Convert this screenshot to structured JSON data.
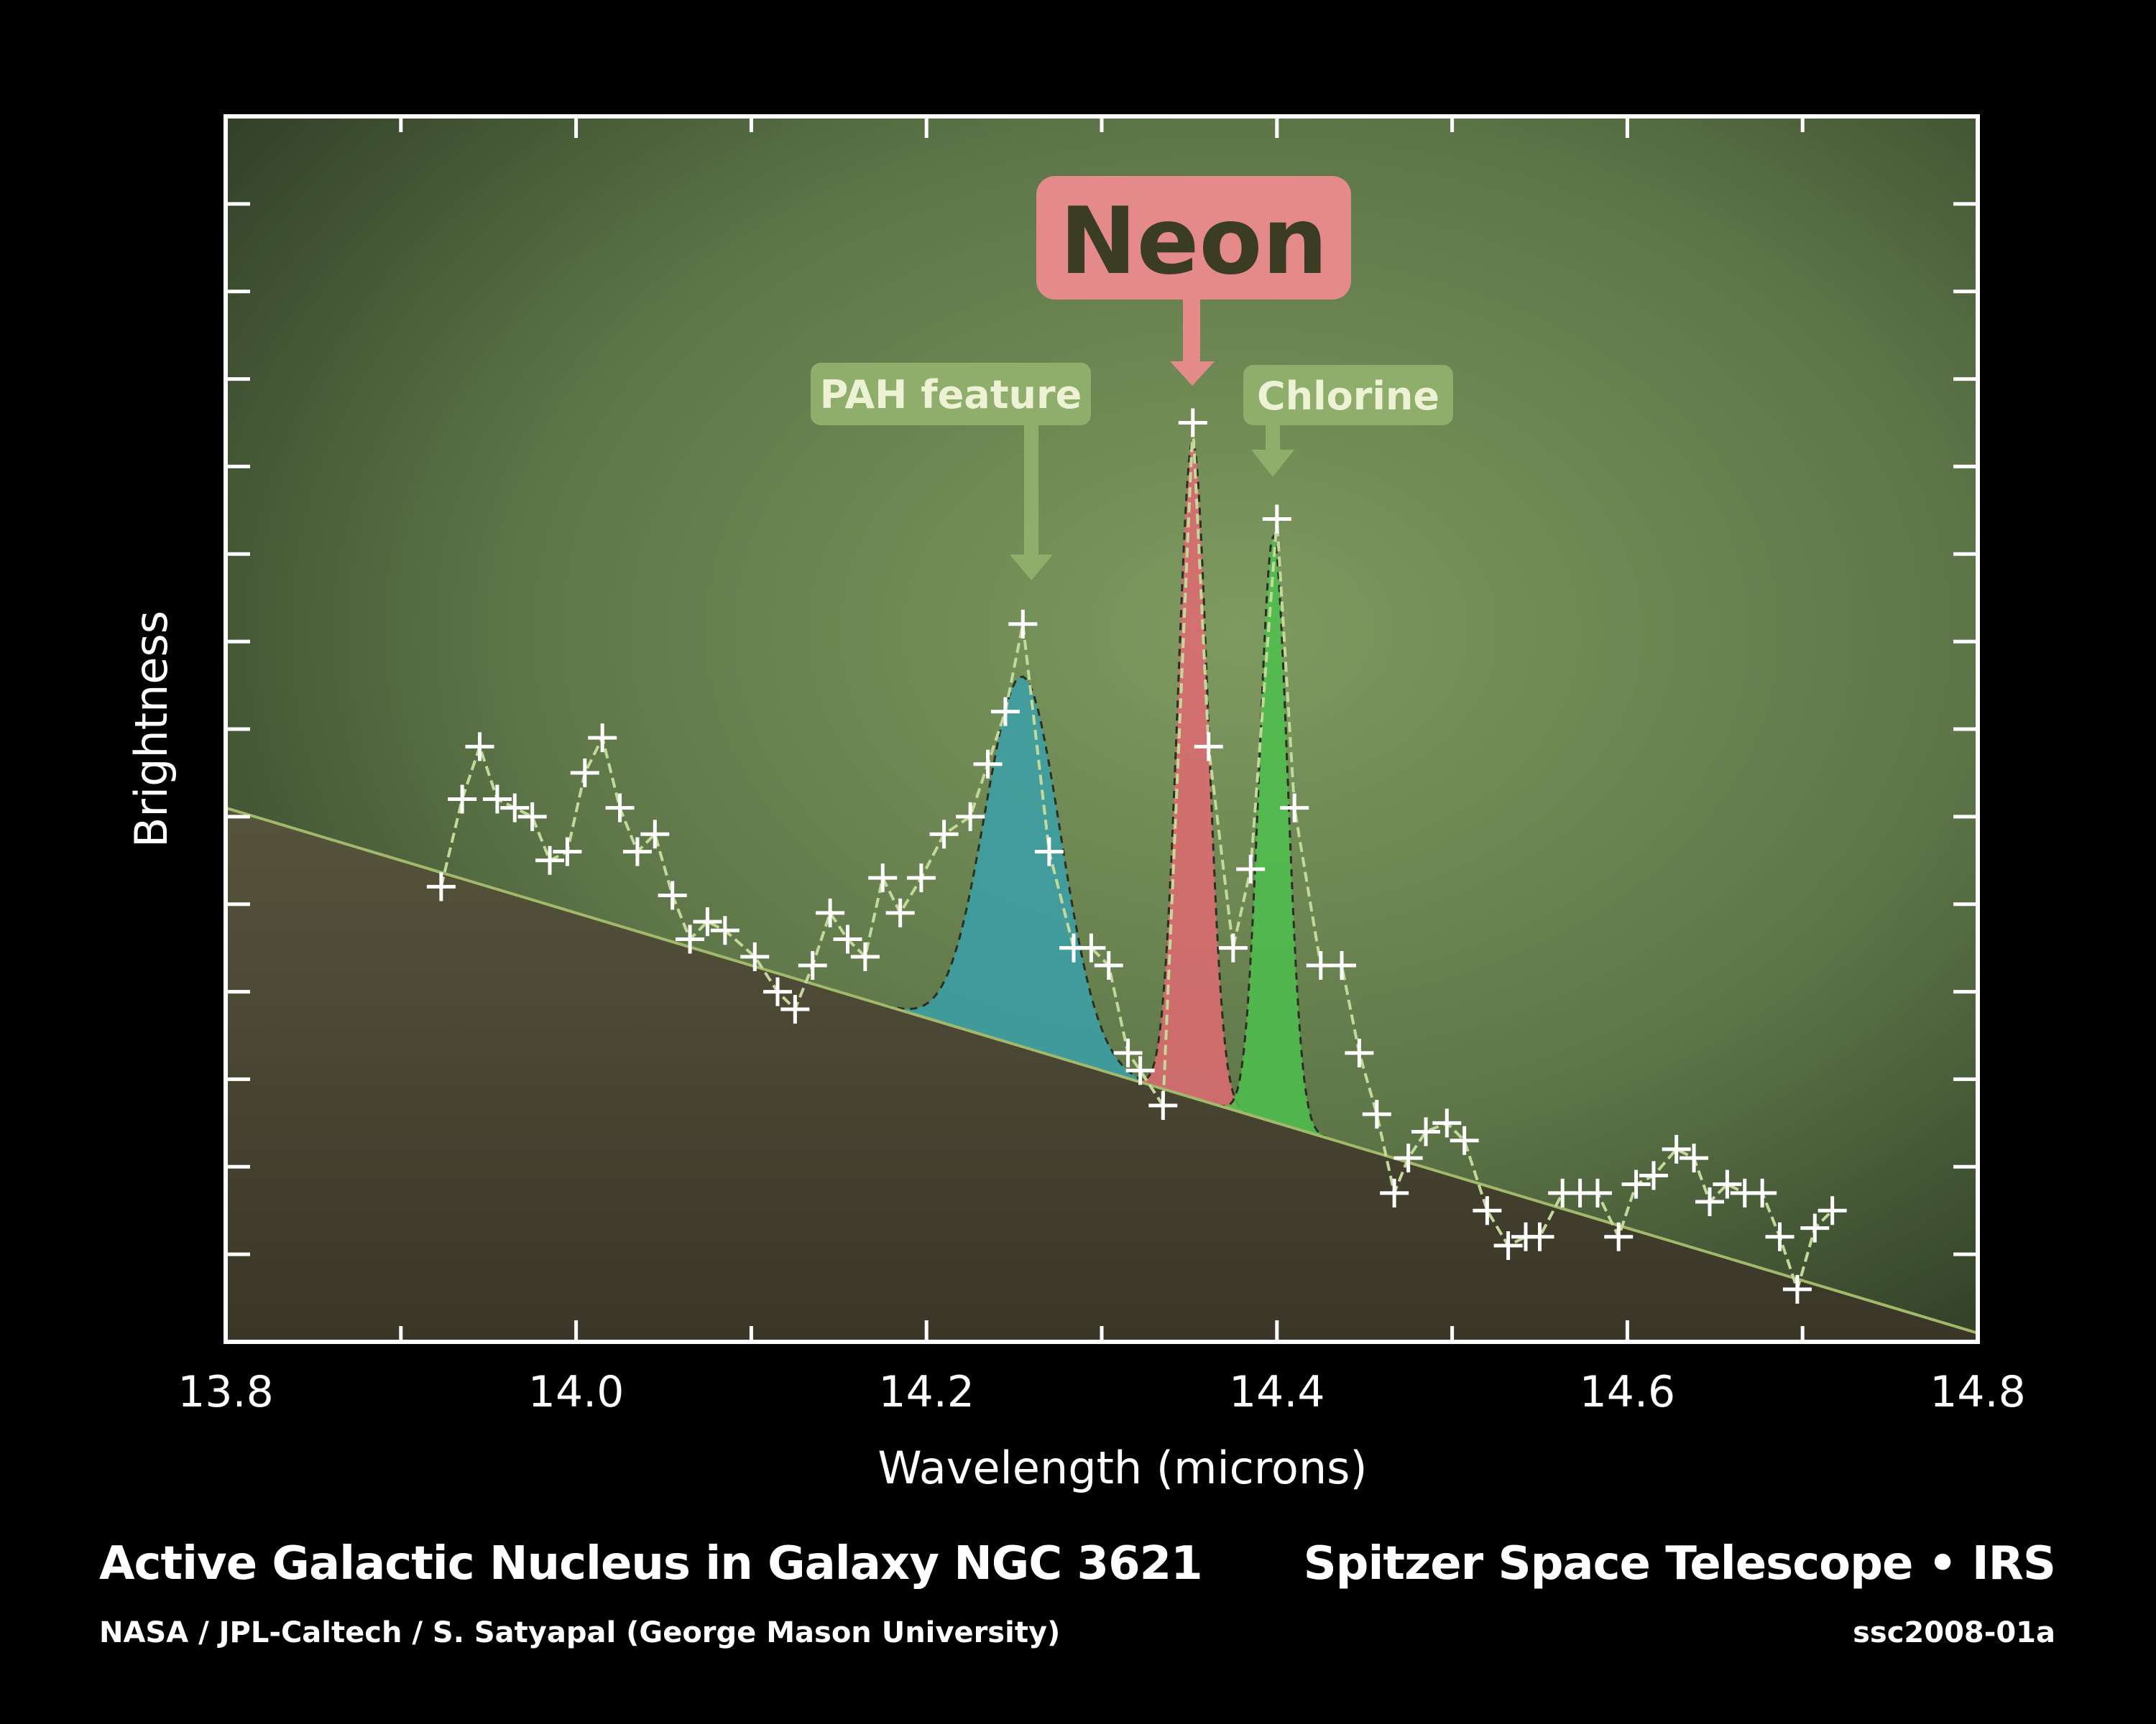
{
  "chart_data": {
    "type": "line",
    "xlabel": "Wavelength (microns)",
    "ylabel": "Brightness",
    "xlim": [
      13.8,
      14.8
    ],
    "ylim": [
      0,
      14
    ],
    "x_ticks": [
      "13.8",
      "14.0",
      "14.2",
      "14.4",
      "14.6",
      "14.8"
    ],
    "y_ticks_labeled": false,
    "grid": false,
    "series": [
      {
        "x": [
          13.923,
          13.935,
          13.945,
          13.955,
          13.965,
          13.975,
          13.985,
          13.995,
          14.005,
          14.015,
          14.025,
          14.035,
          14.045,
          14.055,
          14.065,
          14.075,
          14.085,
          14.102,
          14.115,
          14.125,
          14.135,
          14.145,
          14.155,
          14.165,
          14.175,
          14.185,
          14.197,
          14.21,
          14.225,
          14.235,
          14.245,
          14.255,
          14.27,
          14.284,
          14.294,
          14.304,
          14.315,
          14.322,
          14.335,
          14.352,
          14.361,
          14.375,
          14.385,
          14.4,
          14.41,
          14.425,
          14.437,
          14.447,
          14.457,
          14.467,
          14.475,
          14.485,
          14.497,
          14.507,
          14.52,
          14.532,
          14.542,
          14.55,
          14.563,
          14.573,
          14.583,
          14.595,
          14.605,
          14.615,
          14.628,
          14.638,
          14.647,
          14.657,
          14.667,
          14.677,
          14.687,
          14.697,
          14.707,
          14.717
        ],
        "y": [
          5.2,
          6.2,
          6.8,
          6.2,
          6.1,
          6.0,
          5.5,
          5.6,
          6.5,
          6.9,
          6.1,
          5.6,
          5.8,
          5.1,
          4.6,
          4.8,
          4.7,
          4.4,
          4.0,
          3.8,
          4.3,
          4.9,
          4.6,
          4.4,
          5.3,
          4.9,
          5.3,
          5.8,
          6.0,
          6.6,
          7.2,
          8.2,
          5.6,
          4.5,
          4.5,
          4.3,
          3.3,
          3.1,
          2.7,
          10.5,
          6.8,
          4.5,
          5.4,
          9.4,
          6.1,
          4.3,
          4.3,
          3.3,
          2.6,
          1.7,
          2.1,
          2.4,
          2.5,
          2.3,
          1.5,
          1.1,
          1.2,
          1.2,
          1.7,
          1.7,
          1.7,
          1.2,
          1.8,
          1.9,
          2.2,
          2.1,
          1.6,
          1.8,
          1.7,
          1.7,
          1.2,
          0.6,
          1.3,
          1.5
        ]
      }
    ],
    "continuum": {
      "x": [
        13.8,
        14.8
      ],
      "y": [
        6.1,
        0.1
      ]
    },
    "features": [
      {
        "name": "PAH feature",
        "center": 14.255,
        "peak": 7.6,
        "sigma": 0.0215,
        "color": "#3aa0a8"
      },
      {
        "name": "Neon",
        "center": 14.352,
        "peak": 10.3,
        "sigma": 0.0085,
        "color": "#e06a72"
      },
      {
        "name": "Chlorine",
        "center": 14.398,
        "peak": 9.2,
        "sigma": 0.008,
        "color": "#4dc04d"
      }
    ],
    "annotations": [
      {
        "text": "Neon",
        "points_to": 14.352,
        "color": "#e58a8a"
      },
      {
        "text": "PAH feature",
        "points_to": 14.262,
        "color": "#8fae6c"
      },
      {
        "text": "Chlorine",
        "points_to": 14.398,
        "color": "#8fae6c"
      }
    ]
  },
  "footer": {
    "title": "Active Galactic Nucleus in Galaxy NGC 3621",
    "credit": "NASA / JPL-Caltech / S. Satyapal (George Mason University)",
    "mission": "Spitzer Space Telescope • IRS",
    "image_id": "ssc2008-01a"
  }
}
